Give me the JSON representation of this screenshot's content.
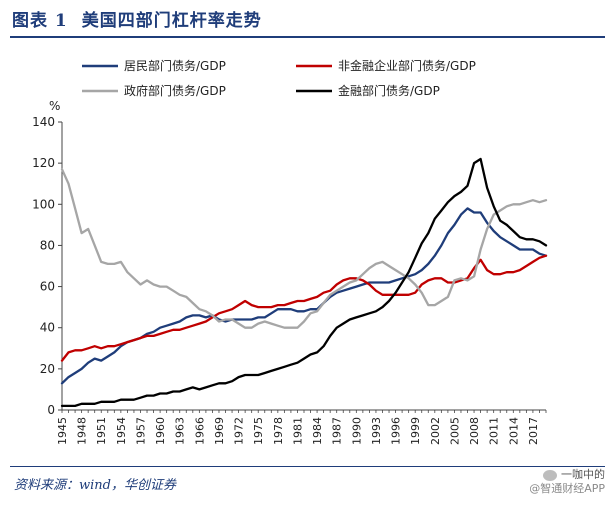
{
  "header": {
    "figure_no": "图表 1",
    "title": "美国四部门杠杆率走势"
  },
  "footer": {
    "source": "资料来源：wind，华创证券",
    "watermark_line1": "一咖中的",
    "watermark_line2": "@智通财经APP",
    "watermark_icon": "wechat-icon"
  },
  "chart_data": {
    "type": "line",
    "unit": "%",
    "ylim": [
      0,
      140
    ],
    "yticks": [
      0,
      20,
      40,
      60,
      80,
      100,
      120,
      140
    ],
    "xlim": [
      1945,
      2019
    ],
    "xticks": [
      1945,
      1948,
      1951,
      1954,
      1957,
      1960,
      1963,
      1966,
      1969,
      1972,
      1975,
      1978,
      1981,
      1984,
      1987,
      1990,
      1993,
      1996,
      1999,
      2002,
      2005,
      2008,
      2011,
      2014,
      2017
    ],
    "legend_position": "top",
    "series": [
      {
        "name": "居民部门债务/GDP",
        "color": "#1f3d7a",
        "x": [
          1945,
          1946,
          1947,
          1948,
          1949,
          1950,
          1951,
          1952,
          1953,
          1954,
          1955,
          1956,
          1957,
          1958,
          1959,
          1960,
          1961,
          1962,
          1963,
          1964,
          1965,
          1966,
          1967,
          1968,
          1969,
          1970,
          1971,
          1972,
          1973,
          1974,
          1975,
          1976,
          1977,
          1978,
          1979,
          1980,
          1981,
          1982,
          1983,
          1984,
          1985,
          1986,
          1987,
          1988,
          1989,
          1990,
          1991,
          1992,
          1993,
          1994,
          1995,
          1996,
          1997,
          1998,
          1999,
          2000,
          2001,
          2002,
          2003,
          2004,
          2005,
          2006,
          2007,
          2008,
          2009,
          2010,
          2011,
          2012,
          2013,
          2014,
          2015,
          2016,
          2017,
          2018,
          2019
        ],
        "y": [
          13,
          16,
          18,
          20,
          23,
          25,
          24,
          26,
          28,
          31,
          33,
          34,
          35,
          37,
          38,
          40,
          41,
          42,
          43,
          45,
          46,
          46,
          45,
          46,
          44,
          43,
          44,
          44,
          44,
          44,
          45,
          45,
          47,
          49,
          49,
          49,
          48,
          48,
          49,
          49,
          52,
          55,
          57,
          58,
          59,
          60,
          61,
          62,
          62,
          62,
          62,
          63,
          64,
          65,
          66,
          68,
          71,
          75,
          80,
          86,
          90,
          95,
          98,
          96,
          96,
          91,
          87,
          84,
          82,
          80,
          78,
          78,
          78,
          76,
          75
        ]
      },
      {
        "name": "非金融企业部门债务/GDP",
        "color": "#c00000",
        "x": [
          1945,
          1946,
          1947,
          1948,
          1949,
          1950,
          1951,
          1952,
          1953,
          1954,
          1955,
          1956,
          1957,
          1958,
          1959,
          1960,
          1961,
          1962,
          1963,
          1964,
          1965,
          1966,
          1967,
          1968,
          1969,
          1970,
          1971,
          1972,
          1973,
          1974,
          1975,
          1976,
          1977,
          1978,
          1979,
          1980,
          1981,
          1982,
          1983,
          1984,
          1985,
          1986,
          1987,
          1988,
          1989,
          1990,
          1991,
          1992,
          1993,
          1994,
          1995,
          1996,
          1997,
          1998,
          1999,
          2000,
          2001,
          2002,
          2003,
          2004,
          2005,
          2006,
          2007,
          2008,
          2009,
          2010,
          2011,
          2012,
          2013,
          2014,
          2015,
          2016,
          2017,
          2018,
          2019
        ],
        "y": [
          24,
          28,
          29,
          29,
          30,
          31,
          30,
          31,
          31,
          32,
          33,
          34,
          35,
          36,
          36,
          37,
          38,
          39,
          39,
          40,
          41,
          42,
          43,
          45,
          47,
          48,
          49,
          51,
          53,
          51,
          50,
          50,
          50,
          51,
          51,
          52,
          53,
          53,
          54,
          55,
          57,
          58,
          61,
          63,
          64,
          64,
          63,
          61,
          58,
          56,
          56,
          56,
          56,
          56,
          57,
          61,
          63,
          64,
          64,
          62,
          62,
          63,
          64,
          69,
          73,
          68,
          66,
          66,
          67,
          67,
          68,
          70,
          72,
          74,
          75
        ]
      },
      {
        "name": "政府部门债务/GDP",
        "color": "#a6a6a6",
        "x": [
          1945,
          1946,
          1947,
          1948,
          1949,
          1950,
          1951,
          1952,
          1953,
          1954,
          1955,
          1956,
          1957,
          1958,
          1959,
          1960,
          1961,
          1962,
          1963,
          1964,
          1965,
          1966,
          1967,
          1968,
          1969,
          1970,
          1971,
          1972,
          1973,
          1974,
          1975,
          1976,
          1977,
          1978,
          1979,
          1980,
          1981,
          1982,
          1983,
          1984,
          1985,
          1986,
          1987,
          1988,
          1989,
          1990,
          1991,
          1992,
          1993,
          1994,
          1995,
          1996,
          1997,
          1998,
          1999,
          2000,
          2001,
          2002,
          2003,
          2004,
          2005,
          2006,
          2007,
          2008,
          2009,
          2010,
          2011,
          2012,
          2013,
          2014,
          2015,
          2016,
          2017,
          2018,
          2019
        ],
        "y": [
          117,
          110,
          98,
          86,
          88,
          80,
          72,
          71,
          71,
          72,
          67,
          64,
          61,
          63,
          61,
          60,
          60,
          58,
          56,
          55,
          52,
          49,
          48,
          46,
          43,
          44,
          44,
          42,
          40,
          40,
          42,
          43,
          42,
          41,
          40,
          40,
          40,
          43,
          47,
          48,
          52,
          56,
          58,
          60,
          62,
          63,
          66,
          69,
          71,
          72,
          70,
          68,
          66,
          64,
          61,
          57,
          51,
          51,
          53,
          55,
          63,
          64,
          63,
          65,
          78,
          88,
          95,
          97,
          99,
          100,
          100,
          101,
          102,
          101,
          102
        ]
      },
      {
        "name": "金融部门债务/GDP",
        "color": "#000000",
        "x": [
          1945,
          1946,
          1947,
          1948,
          1949,
          1950,
          1951,
          1952,
          1953,
          1954,
          1955,
          1956,
          1957,
          1958,
          1959,
          1960,
          1961,
          1962,
          1963,
          1964,
          1965,
          1966,
          1967,
          1968,
          1969,
          1970,
          1971,
          1972,
          1973,
          1974,
          1975,
          1976,
          1977,
          1978,
          1979,
          1980,
          1981,
          1982,
          1983,
          1984,
          1985,
          1986,
          1987,
          1988,
          1989,
          1990,
          1991,
          1992,
          1993,
          1994,
          1995,
          1996,
          1997,
          1998,
          1999,
          2000,
          2001,
          2002,
          2003,
          2004,
          2005,
          2006,
          2007,
          2008,
          2009,
          2010,
          2011,
          2012,
          2013,
          2014,
          2015,
          2016,
          2017,
          2018,
          2019
        ],
        "y": [
          2,
          2,
          2,
          3,
          3,
          3,
          4,
          4,
          4,
          5,
          5,
          5,
          6,
          7,
          7,
          8,
          8,
          9,
          9,
          10,
          11,
          10,
          11,
          12,
          13,
          13,
          14,
          16,
          17,
          17,
          17,
          18,
          19,
          20,
          21,
          22,
          23,
          25,
          27,
          28,
          31,
          36,
          40,
          42,
          44,
          45,
          46,
          47,
          48,
          50,
          53,
          57,
          62,
          67,
          74,
          81,
          86,
          93,
          97,
          101,
          104,
          106,
          109,
          120,
          122,
          108,
          99,
          92,
          90,
          87,
          84,
          83,
          83,
          82,
          80
        ]
      }
    ]
  }
}
